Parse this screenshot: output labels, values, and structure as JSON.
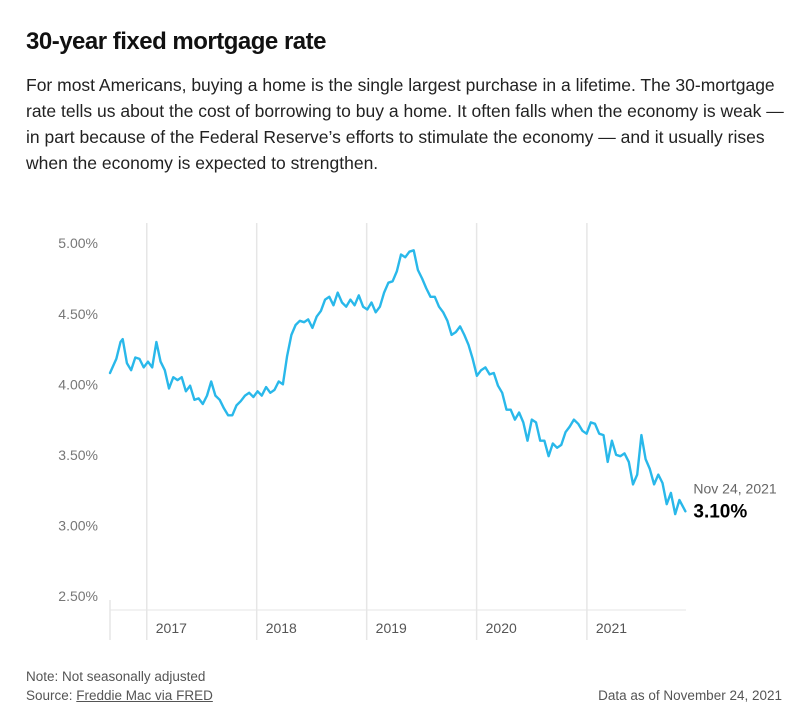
{
  "header": {
    "title": "30-year fixed mortgage rate",
    "description": "For most Americans, buying a home is the single largest purchase in a lifetime. The 30-mortgage rate tells us about the cost of borrowing to buy a home. It often falls when the economy is weak — in part because of the Federal Reserve’s efforts to stimulate the economy — and it usually rises when the economy is expected to strengthen."
  },
  "footer": {
    "note": "Note: Not seasonally adjusted",
    "source_prefix": "Source: ",
    "source_link": "Freddie Mac via FRED",
    "as_of": "Data as of November 24, 2021"
  },
  "colors": {
    "line": "#29b8ea",
    "grid": "#e6e6e6"
  },
  "chart_data": {
    "type": "line",
    "title": "30-year fixed mortgage rate",
    "xlabel": "",
    "ylabel": "",
    "yticks": [
      "2.50%",
      "3.00%",
      "3.50%",
      "4.00%",
      "4.50%",
      "5.00%"
    ],
    "ylim": [
      2.4,
      5.2
    ],
    "xlim": [
      "2016-09-01",
      "2021-11-26"
    ],
    "xticks": [
      {
        "label": "2017",
        "date": "2017-01-01"
      },
      {
        "label": "2018",
        "date": "2018-01-01"
      },
      {
        "label": "2019",
        "date": "2019-01-01"
      },
      {
        "label": "2020",
        "date": "2020-01-01"
      },
      {
        "label": "2021",
        "date": "2021-01-01"
      }
    ],
    "grid": "vertical year lines",
    "last_point": {
      "date_label": "Nov 24, 2021",
      "value_label": "3.10%"
    },
    "series": [
      {
        "values": [
          [
            "2016-09-01",
            4.08
          ],
          [
            "2016-09-22",
            4.18
          ],
          [
            "2016-10-06",
            4.3
          ],
          [
            "2016-10-13",
            4.32
          ],
          [
            "2016-10-27",
            4.15
          ],
          [
            "2016-11-10",
            4.1
          ],
          [
            "2016-11-24",
            4.19
          ],
          [
            "2016-12-08",
            4.18
          ],
          [
            "2016-12-22",
            4.12
          ],
          [
            "2017-01-05",
            4.16
          ],
          [
            "2017-01-19",
            4.12
          ],
          [
            "2017-02-02",
            4.3
          ],
          [
            "2017-02-16",
            4.16
          ],
          [
            "2017-03-02",
            4.1
          ],
          [
            "2017-03-16",
            3.97
          ],
          [
            "2017-03-30",
            4.05
          ],
          [
            "2017-04-13",
            4.03
          ],
          [
            "2017-04-27",
            4.05
          ],
          [
            "2017-05-11",
            3.95
          ],
          [
            "2017-05-25",
            3.99
          ],
          [
            "2017-06-08",
            3.89
          ],
          [
            "2017-06-22",
            3.9
          ],
          [
            "2017-07-06",
            3.86
          ],
          [
            "2017-07-20",
            3.92
          ],
          [
            "2017-08-03",
            4.02
          ],
          [
            "2017-08-17",
            3.92
          ],
          [
            "2017-08-31",
            3.89
          ],
          [
            "2017-09-14",
            3.83
          ],
          [
            "2017-09-28",
            3.78
          ],
          [
            "2017-10-12",
            3.78
          ],
          [
            "2017-10-26",
            3.85
          ],
          [
            "2017-11-09",
            3.88
          ],
          [
            "2017-11-23",
            3.92
          ],
          [
            "2017-12-07",
            3.94
          ],
          [
            "2017-12-21",
            3.91
          ],
          [
            "2018-01-04",
            3.95
          ],
          [
            "2018-01-18",
            3.92
          ],
          [
            "2018-02-01",
            3.98
          ],
          [
            "2018-02-15",
            3.94
          ],
          [
            "2018-03-01",
            3.96
          ],
          [
            "2018-03-15",
            4.02
          ],
          [
            "2018-03-29",
            4.0
          ],
          [
            "2018-04-12",
            4.2
          ],
          [
            "2018-04-26",
            4.35
          ],
          [
            "2018-05-10",
            4.42
          ],
          [
            "2018-05-24",
            4.45
          ],
          [
            "2018-06-07",
            4.44
          ],
          [
            "2018-06-21",
            4.46
          ],
          [
            "2018-07-05",
            4.4
          ],
          [
            "2018-07-19",
            4.48
          ],
          [
            "2018-08-02",
            4.52
          ],
          [
            "2018-08-16",
            4.6
          ],
          [
            "2018-08-30",
            4.62
          ],
          [
            "2018-09-13",
            4.56
          ],
          [
            "2018-09-27",
            4.65
          ],
          [
            "2018-10-11",
            4.58
          ],
          [
            "2018-10-25",
            4.55
          ],
          [
            "2018-11-08",
            4.6
          ],
          [
            "2018-11-22",
            4.56
          ],
          [
            "2018-12-06",
            4.63
          ],
          [
            "2018-12-20",
            4.55
          ],
          [
            "2019-01-03",
            4.53
          ],
          [
            "2019-01-17",
            4.58
          ],
          [
            "2019-01-31",
            4.51
          ],
          [
            "2019-02-14",
            4.55
          ],
          [
            "2019-02-28",
            4.65
          ],
          [
            "2019-03-14",
            4.72
          ],
          [
            "2019-03-28",
            4.73
          ],
          [
            "2019-04-11",
            4.8
          ],
          [
            "2019-04-25",
            4.92
          ],
          [
            "2019-05-09",
            4.9
          ],
          [
            "2019-05-23",
            4.94
          ],
          [
            "2019-06-06",
            4.95
          ],
          [
            "2019-06-20",
            4.81
          ],
          [
            "2019-07-04",
            4.75
          ],
          [
            "2019-07-18",
            4.68
          ],
          [
            "2019-08-01",
            4.62
          ],
          [
            "2019-08-15",
            4.62
          ],
          [
            "2019-08-29",
            4.55
          ],
          [
            "2019-09-12",
            4.51
          ],
          [
            "2019-09-26",
            4.45
          ],
          [
            "2019-10-10",
            4.35
          ],
          [
            "2019-10-24",
            4.37
          ],
          [
            "2019-11-07",
            4.41
          ],
          [
            "2019-11-21",
            4.35
          ],
          [
            "2019-12-05",
            4.28
          ],
          [
            "2019-12-19",
            4.18
          ],
          [
            "2020-01-02",
            4.06
          ],
          [
            "2020-01-16",
            4.1
          ],
          [
            "2020-01-30",
            4.12
          ],
          [
            "2020-02-13",
            4.07
          ],
          [
            "2020-02-27",
            4.08
          ],
          [
            "2020-03-12",
            3.99
          ],
          [
            "2020-03-26",
            3.94
          ],
          [
            "2020-04-09",
            3.82
          ],
          [
            "2020-04-23",
            3.82
          ],
          [
            "2020-05-07",
            3.75
          ],
          [
            "2020-05-21",
            3.8
          ],
          [
            "2020-06-04",
            3.73
          ],
          [
            "2020-06-18",
            3.6
          ],
          [
            "2020-07-02",
            3.75
          ],
          [
            "2020-07-16",
            3.73
          ],
          [
            "2020-07-30",
            3.6
          ],
          [
            "2020-08-13",
            3.6
          ],
          [
            "2020-08-27",
            3.49
          ],
          [
            "2020-09-10",
            3.58
          ],
          [
            "2020-09-24",
            3.55
          ],
          [
            "2020-10-08",
            3.57
          ],
          [
            "2020-10-22",
            3.66
          ],
          [
            "2020-11-05",
            3.7
          ],
          [
            "2020-11-19",
            3.75
          ],
          [
            "2020-12-03",
            3.72
          ],
          [
            "2020-12-17",
            3.67
          ],
          [
            "2020-12-31",
            3.65
          ],
          [
            "2021-01-14",
            3.73
          ],
          [
            "2021-01-28",
            3.72
          ],
          [
            "2021-02-11",
            3.65
          ],
          [
            "2021-02-25",
            3.64
          ],
          [
            "2021-03-11",
            3.45
          ],
          [
            "2021-03-25",
            3.6
          ],
          [
            "2021-04-08",
            3.5
          ],
          [
            "2021-04-22",
            3.49
          ],
          [
            "2021-05-06",
            3.51
          ],
          [
            "2021-05-20",
            3.45
          ],
          [
            "2021-06-03",
            3.29
          ],
          [
            "2021-06-17",
            3.36
          ],
          [
            "2021-07-01",
            3.64
          ],
          [
            "2021-07-15",
            3.47
          ],
          [
            "2021-07-29",
            3.4
          ],
          [
            "2021-08-12",
            3.29
          ],
          [
            "2021-08-26",
            3.36
          ],
          [
            "2021-09-09",
            3.3
          ],
          [
            "2021-09-23",
            3.15
          ],
          [
            "2021-10-07",
            3.23
          ],
          [
            "2021-10-21",
            3.08
          ],
          [
            "2021-11-04",
            3.18
          ],
          [
            "2021-11-24",
            3.1
          ]
        ]
      }
    ]
  }
}
